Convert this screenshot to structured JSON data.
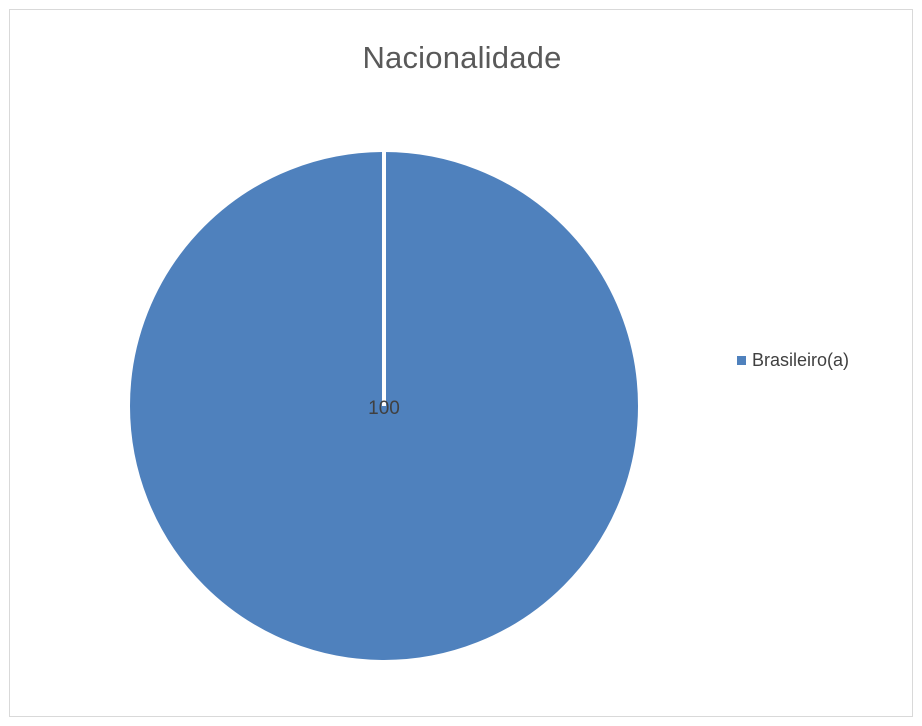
{
  "chart_data": {
    "type": "pie",
    "title": "Nacionalidade",
    "series": [
      {
        "name": "Brasileiro(a)",
        "value": 100,
        "label": "100",
        "color": "#4f81bd"
      }
    ],
    "legend_position": "right"
  }
}
